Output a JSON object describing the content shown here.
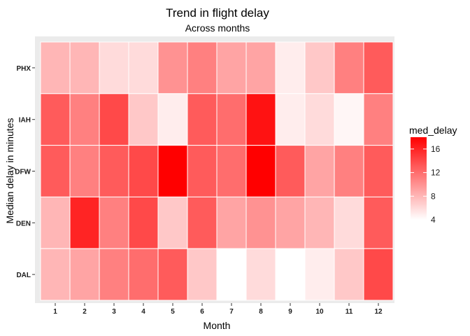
{
  "chart_data": {
    "type": "heatmap",
    "title": "Trend in flight delay",
    "subtitle": "Across months",
    "xlabel": "Month",
    "ylabel": "Median delay in minutes",
    "x_categories": [
      "1",
      "2",
      "3",
      "4",
      "5",
      "6",
      "7",
      "8",
      "9",
      "10",
      "11",
      "12"
    ],
    "y_categories": [
      "DAL",
      "DEN",
      "DFW",
      "IAH",
      "PHX"
    ],
    "values": {
      "PHX": [
        8,
        8,
        6,
        6,
        10,
        11,
        9,
        9,
        5,
        7,
        11,
        13
      ],
      "IAH": [
        13,
        11,
        14,
        7,
        5,
        13,
        12,
        17,
        5,
        6,
        4.5,
        11
      ],
      "DFW": [
        13,
        11,
        13,
        14,
        18,
        13,
        12,
        18,
        13,
        9,
        11,
        13
      ],
      "DEN": [
        8,
        16,
        11,
        14,
        7,
        13,
        9,
        10,
        9,
        8,
        6,
        13
      ],
      "DAL": [
        8,
        9,
        11,
        12,
        13,
        7,
        4,
        6,
        4,
        5,
        7,
        14
      ]
    },
    "color_scale": {
      "low": "#ffffff",
      "high": "#ff0000",
      "min": 4,
      "max": 18
    },
    "legend": {
      "title": "med_delay",
      "ticks": [
        4,
        8,
        12,
        16
      ],
      "position": "right"
    },
    "panel_background": "#ebebeb",
    "tile_border": "#ffffff"
  }
}
